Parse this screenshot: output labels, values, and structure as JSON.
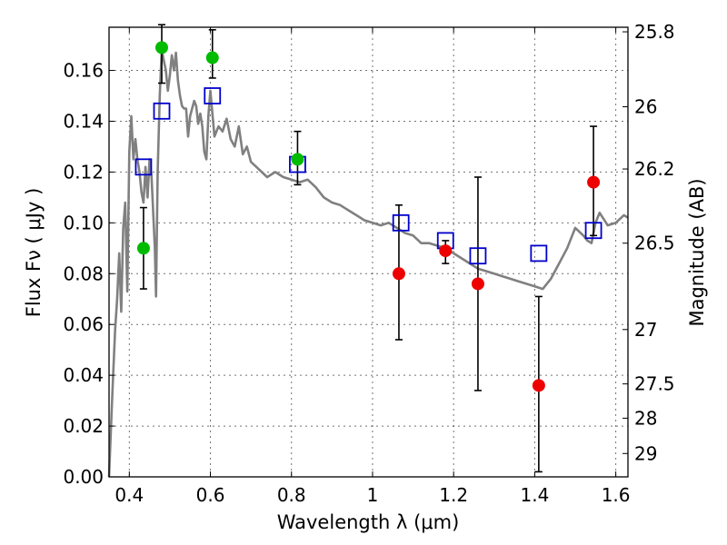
{
  "chart_data": {
    "type": "scatter",
    "xlabel": "Wavelength  λ (μm)",
    "ylabel": "Flux  Fν  ( μJy )",
    "ylabel_right": "Magnitude (AB)",
    "xlim": [
      0.35,
      1.63
    ],
    "ylim": [
      0.0,
      0.177
    ],
    "grid": true,
    "x_ticks": [
      {
        "value": 0.4,
        "label": "0.4"
      },
      {
        "value": 0.6,
        "label": "0.6"
      },
      {
        "value": 0.8,
        "label": "0.8"
      },
      {
        "value": 1.0,
        "label": "1"
      },
      {
        "value": 1.2,
        "label": "1.2"
      },
      {
        "value": 1.4,
        "label": "1.4"
      },
      {
        "value": 1.6,
        "label": "1.6"
      }
    ],
    "y_ticks": [
      {
        "value": 0.0,
        "label": "0.00"
      },
      {
        "value": 0.02,
        "label": "0.02"
      },
      {
        "value": 0.04,
        "label": "0.04"
      },
      {
        "value": 0.06,
        "label": "0.06"
      },
      {
        "value": 0.08,
        "label": "0.08"
      },
      {
        "value": 0.1,
        "label": "0.10"
      },
      {
        "value": 0.12,
        "label": "0.12"
      },
      {
        "value": 0.14,
        "label": "0.14"
      },
      {
        "value": 0.16,
        "label": "0.16"
      }
    ],
    "right_ticks": [
      {
        "label": "25.8",
        "flux": 0.1752
      },
      {
        "label": "26",
        "flux": 0.1457
      },
      {
        "label": "26.2",
        "flux": 0.1212
      },
      {
        "label": "26.5",
        "flux": 0.092
      },
      {
        "label": "27",
        "flux": 0.058
      },
      {
        "label": "27.5",
        "flux": 0.0366
      },
      {
        "label": "28",
        "flux": 0.0231
      },
      {
        "label": "29",
        "flux": 0.0092
      }
    ],
    "colors": {
      "sed": "#808080",
      "model": "#0000cc",
      "green": "#00bb00",
      "red": "#ee0000",
      "errorbar": "#000000"
    },
    "series": [
      {
        "kind": "model_sed_line",
        "x": [
          0.35,
          0.355,
          0.36,
          0.365,
          0.37,
          0.375,
          0.38,
          0.385,
          0.39,
          0.395,
          0.4,
          0.405,
          0.41,
          0.415,
          0.42,
          0.425,
          0.43,
          0.435,
          0.44,
          0.445,
          0.45,
          0.455,
          0.46,
          0.463,
          0.466,
          0.47,
          0.475,
          0.48,
          0.485,
          0.49,
          0.495,
          0.5,
          0.505,
          0.51,
          0.515,
          0.52,
          0.525,
          0.53,
          0.535,
          0.54,
          0.545,
          0.55,
          0.555,
          0.56,
          0.565,
          0.57,
          0.575,
          0.58,
          0.585,
          0.59,
          0.595,
          0.6,
          0.61,
          0.62,
          0.63,
          0.64,
          0.65,
          0.66,
          0.67,
          0.68,
          0.69,
          0.7,
          0.72,
          0.74,
          0.76,
          0.78,
          0.8,
          0.82,
          0.84,
          0.86,
          0.88,
          0.9,
          0.92,
          0.94,
          0.96,
          0.98,
          1.0,
          1.02,
          1.04,
          1.06,
          1.08,
          1.1,
          1.12,
          1.14,
          1.16,
          1.18,
          1.2,
          1.22,
          1.24,
          1.26,
          1.28,
          1.3,
          1.32,
          1.34,
          1.36,
          1.38,
          1.4,
          1.42,
          1.44,
          1.46,
          1.48,
          1.5,
          1.52,
          1.53,
          1.54,
          1.55,
          1.56,
          1.58,
          1.6,
          1.62,
          1.63
        ],
        "y": [
          0.0,
          0.02,
          0.04,
          0.058,
          0.07,
          0.088,
          0.065,
          0.098,
          0.108,
          0.073,
          0.128,
          0.142,
          0.125,
          0.133,
          0.125,
          0.12,
          0.112,
          0.108,
          0.122,
          0.11,
          0.125,
          0.118,
          0.1,
          0.09,
          0.071,
          0.12,
          0.15,
          0.168,
          0.164,
          0.16,
          0.152,
          0.158,
          0.166,
          0.16,
          0.167,
          0.156,
          0.15,
          0.146,
          0.145,
          0.145,
          0.134,
          0.142,
          0.145,
          0.148,
          0.146,
          0.139,
          0.143,
          0.138,
          0.128,
          0.125,
          0.142,
          0.152,
          0.134,
          0.138,
          0.136,
          0.141,
          0.133,
          0.13,
          0.138,
          0.127,
          0.13,
          0.124,
          0.121,
          0.118,
          0.12,
          0.118,
          0.117,
          0.116,
          0.117,
          0.114,
          0.11,
          0.108,
          0.107,
          0.105,
          0.103,
          0.101,
          0.1,
          0.099,
          0.1,
          0.098,
          0.096,
          0.095,
          0.092,
          0.092,
          0.091,
          0.09,
          0.088,
          0.086,
          0.084,
          0.082,
          0.081,
          0.08,
          0.079,
          0.078,
          0.077,
          0.076,
          0.075,
          0.074,
          0.078,
          0.084,
          0.09,
          0.098,
          0.095,
          0.093,
          0.092,
          0.1,
          0.104,
          0.099,
          0.1,
          0.103,
          0.102
        ]
      },
      {
        "kind": "model_boxes",
        "x": [
          0.435,
          0.48,
          0.605,
          0.815,
          1.07,
          1.18,
          1.26,
          1.41,
          1.545
        ],
        "y": [
          0.122,
          0.144,
          0.15,
          0.123,
          0.1,
          0.093,
          0.087,
          0.088,
          0.097
        ]
      },
      {
        "kind": "observed_points_green",
        "x": [
          0.435,
          0.48,
          0.605,
          0.815
        ],
        "y": [
          0.09,
          0.169,
          0.165,
          0.125
        ],
        "err_low": [
          0.074,
          0.155,
          0.157,
          0.115
        ],
        "err_high": [
          0.106,
          0.178,
          0.176,
          0.136
        ]
      },
      {
        "kind": "observed_points_red",
        "x": [
          1.065,
          1.18,
          1.26,
          1.41,
          1.545
        ],
        "y": [
          0.08,
          0.089,
          0.076,
          0.036,
          0.116
        ],
        "err_low": [
          0.054,
          0.084,
          0.034,
          0.002,
          0.095
        ],
        "err_high": [
          0.107,
          0.093,
          0.118,
          0.071,
          0.138
        ]
      }
    ]
  }
}
